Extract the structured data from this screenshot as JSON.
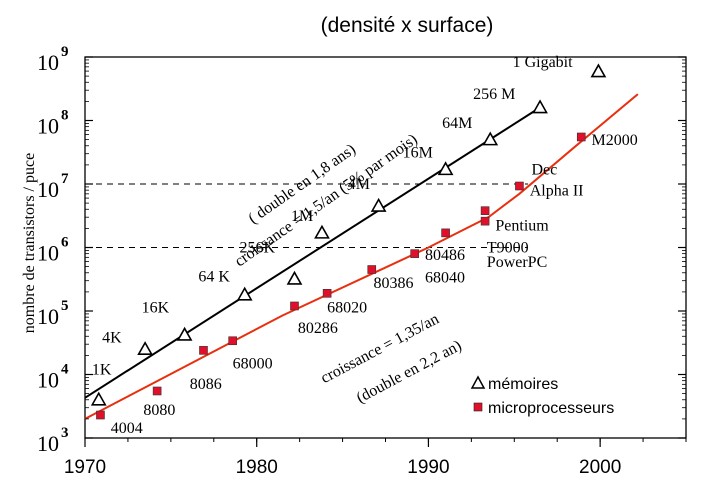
{
  "chart_data": {
    "type": "scatter",
    "title": "(densité x  surface)",
    "ylabel": "nombre de transistors / puce",
    "xlabel": "",
    "xlim": [
      1970,
      2005
    ],
    "ylim_exponent": [
      3,
      9
    ],
    "y_scale": "log",
    "grid": false,
    "legend_position": "bottom-right",
    "x_ticks": [
      "1970",
      "1980",
      "1990",
      "2000"
    ],
    "y_ticks": [
      {
        "base": "10",
        "exp": "3"
      },
      {
        "base": "10",
        "exp": "4"
      },
      {
        "base": "10",
        "exp": "5"
      },
      {
        "base": "10",
        "exp": "6"
      },
      {
        "base": "10",
        "exp": "7"
      },
      {
        "base": "10",
        "exp": "8"
      },
      {
        "base": "10",
        "exp": "9"
      }
    ],
    "series": [
      {
        "name": "mémoires",
        "marker": "triangle",
        "color": "#000000",
        "points": [
          {
            "x": 1970.8,
            "y": 4000
          },
          {
            "x": 1973.5,
            "y": 25000
          },
          {
            "x": 1975.8,
            "y": 42000
          },
          {
            "x": 1979.3,
            "y": 180000
          },
          {
            "x": 1982.2,
            "y": 320000
          },
          {
            "x": 1983.8,
            "y": 1700000
          },
          {
            "x": 1987.1,
            "y": 4500000
          },
          {
            "x": 1991.0,
            "y": 17000000
          },
          {
            "x": 1993.6,
            "y": 50000000
          },
          {
            "x": 1996.5,
            "y": 160000000
          },
          {
            "x": 1999.9,
            "y": 590000000
          }
        ]
      },
      {
        "name": "microprocesseurs",
        "marker": "square",
        "color": "#e0102a",
        "points": [
          {
            "x": 1970.9,
            "y": 2300
          },
          {
            "x": 1974.2,
            "y": 5500
          },
          {
            "x": 1976.9,
            "y": 24000
          },
          {
            "x": 1978.6,
            "y": 34000
          },
          {
            "x": 1982.2,
            "y": 120000
          },
          {
            "x": 1984.1,
            "y": 190000
          },
          {
            "x": 1986.7,
            "y": 450000
          },
          {
            "x": 1989.2,
            "y": 800000
          },
          {
            "x": 1991.0,
            "y": 1700000
          },
          {
            "x": 1993.3,
            "y": 2600000
          },
          {
            "x": 1993.3,
            "y": 3800000
          },
          {
            "x": 1995.3,
            "y": 9300000
          },
          {
            "x": 1998.9,
            "y": 55000000
          }
        ]
      }
    ],
    "fit_lines": [
      {
        "color": "#000000",
        "points": [
          {
            "x": 1970,
            "y": 4300
          },
          {
            "x": 1996.5,
            "y": 160000000
          }
        ]
      },
      {
        "color": "#e83010",
        "points": [
          {
            "x": 1970,
            "y": 2000
          },
          {
            "x": 1981.5,
            "y": 85000
          },
          {
            "x": 1990,
            "y": 1000000
          },
          {
            "x": 1993.5,
            "y": 3000000
          },
          {
            "x": 1995.3,
            "y": 7000000
          },
          {
            "x": 1998.5,
            "y": 38000000
          },
          {
            "x": 2002.2,
            "y": 260000000
          }
        ]
      }
    ],
    "reference_lines": [
      {
        "y": 10000000,
        "style": "dashed"
      },
      {
        "y": 1000000,
        "style": "dashed"
      }
    ],
    "point_labels": [
      {
        "text": "1K",
        "x": 1970.4,
        "y": 10000
      },
      {
        "text": "4K",
        "x": 1971.0,
        "y": 32000
      },
      {
        "text": "16K",
        "x": 1973.3,
        "y": 95000
      },
      {
        "text": "64 K",
        "x": 1976.6,
        "y": 290000
      },
      {
        "text": "256K",
        "x": 1979.0,
        "y": 830000
      },
      {
        "text": "1M",
        "x": 1982.0,
        "y": 2600000
      },
      {
        "text": "4M",
        "x": 1985.3,
        "y": 8400000
      },
      {
        "text": "16M",
        "x": 1988.5,
        "y": 26000000
      },
      {
        "text": "64M",
        "x": 1990.8,
        "y": 76000000
      },
      {
        "text": "256 M",
        "x": 1992.6,
        "y": 220000000
      },
      {
        "text": "1 Gigabit",
        "x": 1994.9,
        "y": 690000000
      },
      {
        "text": "4004",
        "x": 1971.5,
        "y": 1200
      },
      {
        "text": "8080",
        "x": 1973.4,
        "y": 2300
      },
      {
        "text": "8086",
        "x": 1976.1,
        "y": 5900
      },
      {
        "text": "68000",
        "x": 1978.6,
        "y": 12500
      },
      {
        "text": "80286",
        "x": 1982.4,
        "y": 45000
      },
      {
        "text": "68020",
        "x": 1984.1,
        "y": 95000
      },
      {
        "text": "80386",
        "x": 1986.8,
        "y": 230000
      },
      {
        "text": "80486",
        "x": 1989.8,
        "y": 630000
      },
      {
        "text": "68040",
        "x": 1989.8,
        "y": 280000
      },
      {
        "text": "T9000",
        "x": 1993.4,
        "y": 830000
      },
      {
        "text": "PowerPC",
        "x": 1993.4,
        "y": 490000
      },
      {
        "text": "Pentium",
        "x": 1993.9,
        "y": 1850000
      },
      {
        "text": "Dec",
        "x": 1996.0,
        "y": 14000000
      },
      {
        "text": "Alpha II",
        "x": 1995.9,
        "y": 6600000
      },
      {
        "text": "M2000",
        "x": 1999.5,
        "y": 41000000
      }
    ],
    "annotations": [
      {
        "text": "croissance = 1,5/an (5% par mois)",
        "x": 1984.2,
        "y": 4800000,
        "angle": -35
      },
      {
        "text": "( double en 1,8 ans)",
        "x": 1982.8,
        "y": 8700000,
        "angle": -35
      },
      {
        "text": "croissance = 1,35/an",
        "x": 1987.3,
        "y": 22000,
        "angle": -28
      },
      {
        "text": "(double en 2,2 an)",
        "x": 1989.0,
        "y": 9500,
        "angle": -28
      }
    ]
  }
}
